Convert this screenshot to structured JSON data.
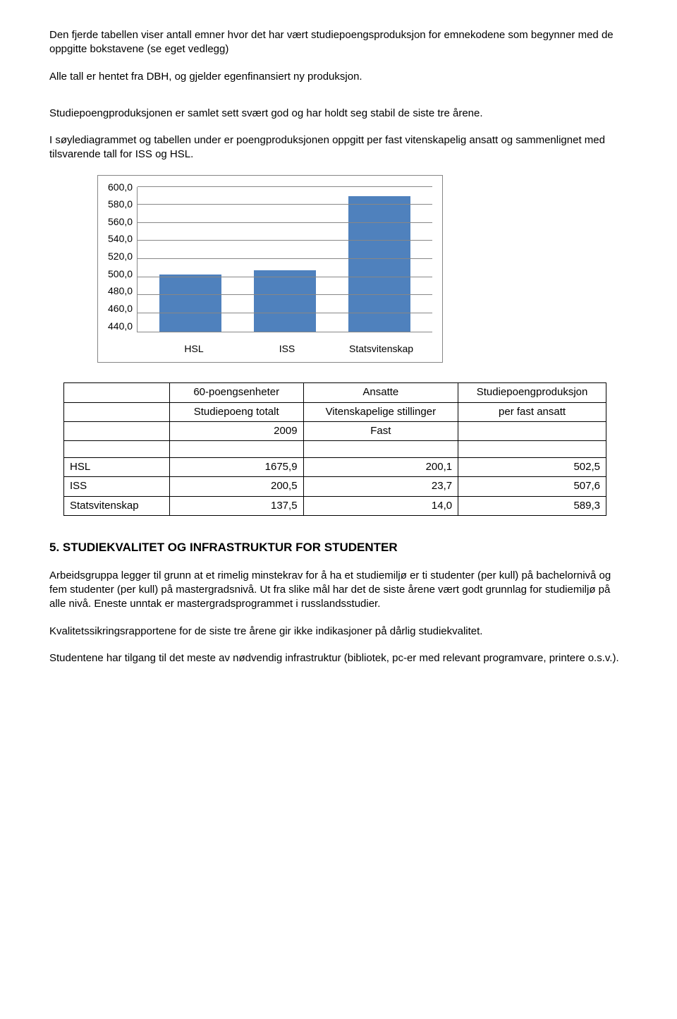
{
  "paragraphs": {
    "p1": "Den fjerde tabellen viser antall emner hvor det har vært studiepoengsproduksjon for emnekodene som begynner med de oppgitte bokstavene (se eget vedlegg)",
    "p2": "Alle tall er hentet fra DBH, og gjelder egenfinansiert ny produksjon.",
    "p3": "Studiepoengproduksjonen er samlet sett svært god og har holdt seg stabil de siste tre årene.",
    "p4": "I søylediagrammet og tabellen under er poengproduksjonen oppgitt per fast vitenskapelig ansatt og sammenlignet med tilsvarende tall for ISS og HSL.",
    "section_title": "5. STUDIEKVALITET OG INFRASTRUKTUR FOR STUDENTER",
    "p5": "Arbeidsgruppa legger til grunn at et rimelig minstekrav for å ha et studiemiljø er ti studenter (per kull) på bachelornivå og fem studenter (per kull) på mastergradsnivå. Ut fra slike mål har det de siste årene vært godt grunnlag for studiemiljø på alle nivå. Eneste unntak er mastergradsprogrammet i russlandsstudier.",
    "p6": "Kvalitetssikringsrapportene for de siste tre årene gir ikke indikasjoner på dårlig studiekvalitet.",
    "p7": "Studentene har tilgang til det meste av nødvendig infrastruktur (bibliotek, pc-er med relevant programvare, printere o.s.v.)."
  },
  "chart": {
    "type": "bar",
    "categories": [
      "HSL",
      "ISS",
      "Statsvitenskap"
    ],
    "values": [
      502.5,
      507.6,
      589.3
    ],
    "bar_color": "#4f81bd",
    "ylim": [
      440,
      600
    ],
    "ytick_step": 20,
    "yticks": [
      "600,0",
      "580,0",
      "560,0",
      "540,0",
      "520,0",
      "500,0",
      "480,0",
      "460,0",
      "440,0"
    ],
    "grid_color": "#878787",
    "border_color": "#868686",
    "background_color": "#ffffff",
    "axis_fontsize": 14
  },
  "table": {
    "header": {
      "h1a": "60-poengsenheter",
      "h1b": "Ansatte",
      "h1c": "Studiepoengproduksjon",
      "h2a": "Studiepoeng totalt",
      "h2b": "Vitenskapelige stillinger",
      "h2c": "per fast ansatt",
      "h3a": "2009",
      "h3b": "Fast"
    },
    "rows": [
      {
        "label": "HSL",
        "c1": "1675,9",
        "c2": "200,1",
        "c3": "502,5"
      },
      {
        "label": "ISS",
        "c1": "200,5",
        "c2": "23,7",
        "c3": "507,6"
      },
      {
        "label": "Statsvitenskap",
        "c1": "137,5",
        "c2": "14,0",
        "c3": "589,3"
      }
    ],
    "col_widths": [
      "150px",
      "190px",
      "220px",
      "210px"
    ]
  }
}
